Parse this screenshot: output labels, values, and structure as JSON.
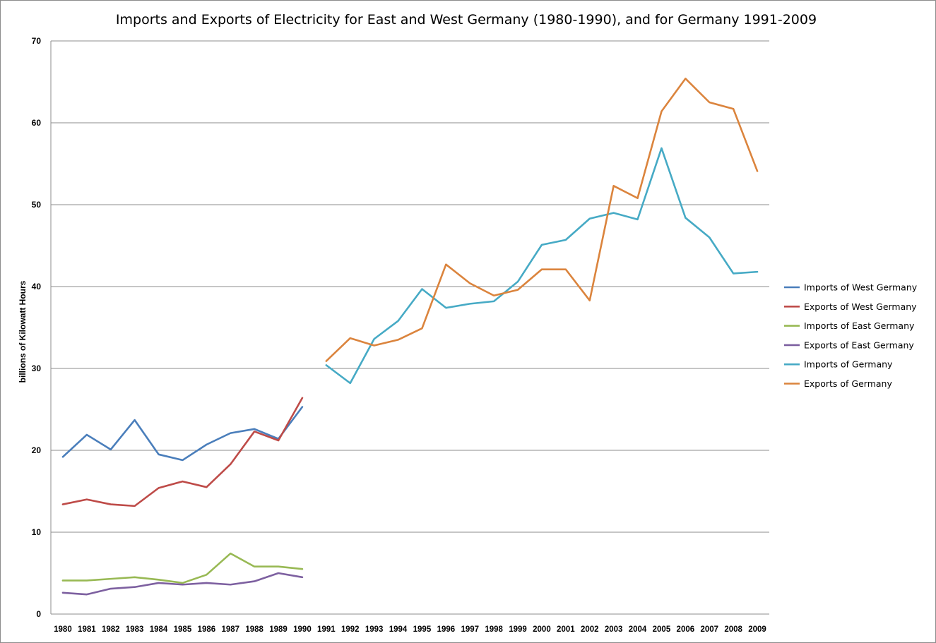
{
  "chart_data": {
    "type": "line",
    "title": "Imports and Exports of Electricity for East and West Germany (1980-1990),  and for Germany 1991-2009",
    "xlabel": "",
    "ylabel": "billions of Kilowatt Hours",
    "ylim": [
      0,
      70
    ],
    "yticks": [
      "0",
      "10",
      "20",
      "30",
      "40",
      "50",
      "60",
      "70"
    ],
    "grid": true,
    "legend_position": "right",
    "categories": [
      "1980",
      "1981",
      "1982",
      "1983",
      "1984",
      "1985",
      "1986",
      "1987",
      "1988",
      "1989",
      "1990",
      "1991",
      "1992",
      "1993",
      "1994",
      "1995",
      "1996",
      "1997",
      "1998",
      "1999",
      "2000",
      "2001",
      "2002",
      "2003",
      "2004",
      "2005",
      "2006",
      "2007",
      "2008",
      "2009"
    ],
    "series": [
      {
        "name": "Imports of West Germany",
        "color": "#4a7ebb",
        "values": [
          19.2,
          21.9,
          20.1,
          23.7,
          19.5,
          18.8,
          20.7,
          22.1,
          22.6,
          21.4,
          25.3,
          null,
          null,
          null,
          null,
          null,
          null,
          null,
          null,
          null,
          null,
          null,
          null,
          null,
          null,
          null,
          null,
          null,
          null,
          null
        ]
      },
      {
        "name": "Exports of West Germany",
        "color": "#be4b48",
        "values": [
          13.4,
          14.0,
          13.4,
          13.2,
          15.4,
          16.2,
          15.5,
          18.3,
          22.3,
          21.2,
          26.4,
          null,
          null,
          null,
          null,
          null,
          null,
          null,
          null,
          null,
          null,
          null,
          null,
          null,
          null,
          null,
          null,
          null,
          null,
          null
        ]
      },
      {
        "name": "Imports of East Germany",
        "color": "#98b954",
        "values": [
          4.1,
          4.1,
          4.3,
          4.5,
          4.2,
          3.8,
          4.8,
          7.4,
          5.8,
          5.8,
          5.5,
          null,
          null,
          null,
          null,
          null,
          null,
          null,
          null,
          null,
          null,
          null,
          null,
          null,
          null,
          null,
          null,
          null,
          null,
          null
        ]
      },
      {
        "name": "Exports of East Germany",
        "color": "#7d60a0",
        "values": [
          2.6,
          2.4,
          3.1,
          3.3,
          3.8,
          3.6,
          3.8,
          3.6,
          4.0,
          5.0,
          4.5,
          null,
          null,
          null,
          null,
          null,
          null,
          null,
          null,
          null,
          null,
          null,
          null,
          null,
          null,
          null,
          null,
          null,
          null,
          null
        ]
      },
      {
        "name": "Imports of Germany",
        "color": "#46aac5",
        "values": [
          null,
          null,
          null,
          null,
          null,
          null,
          null,
          null,
          null,
          null,
          null,
          30.4,
          28.2,
          33.6,
          35.8,
          39.7,
          37.4,
          37.9,
          38.2,
          40.6,
          45.1,
          45.7,
          48.3,
          49.0,
          48.2,
          56.9,
          48.4,
          46.0,
          41.6,
          41.8
        ]
      },
      {
        "name": "Exports of Germany",
        "color": "#db843d",
        "values": [
          null,
          null,
          null,
          null,
          null,
          null,
          null,
          null,
          null,
          null,
          null,
          30.9,
          33.7,
          32.8,
          33.5,
          34.9,
          42.7,
          40.4,
          38.9,
          39.6,
          42.1,
          42.1,
          38.3,
          52.3,
          50.8,
          61.4,
          65.4,
          62.5,
          61.7,
          54.1
        ]
      }
    ]
  }
}
